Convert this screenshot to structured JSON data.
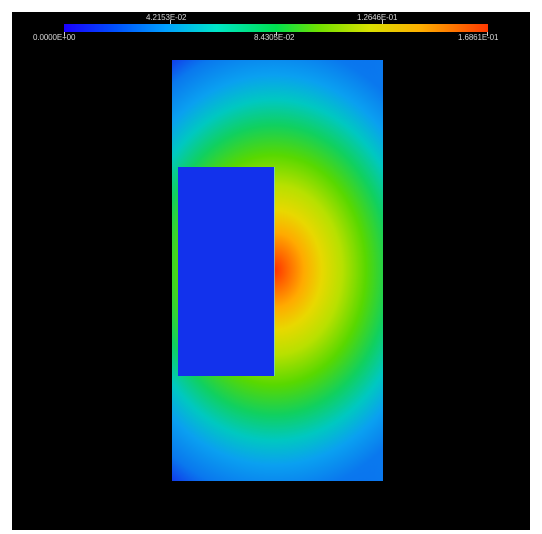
{
  "colorbar": {
    "ticks_top": [
      {
        "label": "4.2153E-02",
        "fraction": 0.25
      },
      {
        "label": "1.2646E-01",
        "fraction": 0.75
      }
    ],
    "ticks_bottom": [
      {
        "label": "0.0000E+00",
        "fraction": 0.0
      },
      {
        "label": "8.4305E-02",
        "fraction": 0.5
      },
      {
        "label": "1.6861E-01",
        "fraction": 1.0
      }
    ],
    "min": 0.0,
    "max": 0.16861
  },
  "colors": {
    "background": "#000000",
    "frame": "#ffffff",
    "low": "#1a3cff",
    "high": "#ff3000"
  }
}
